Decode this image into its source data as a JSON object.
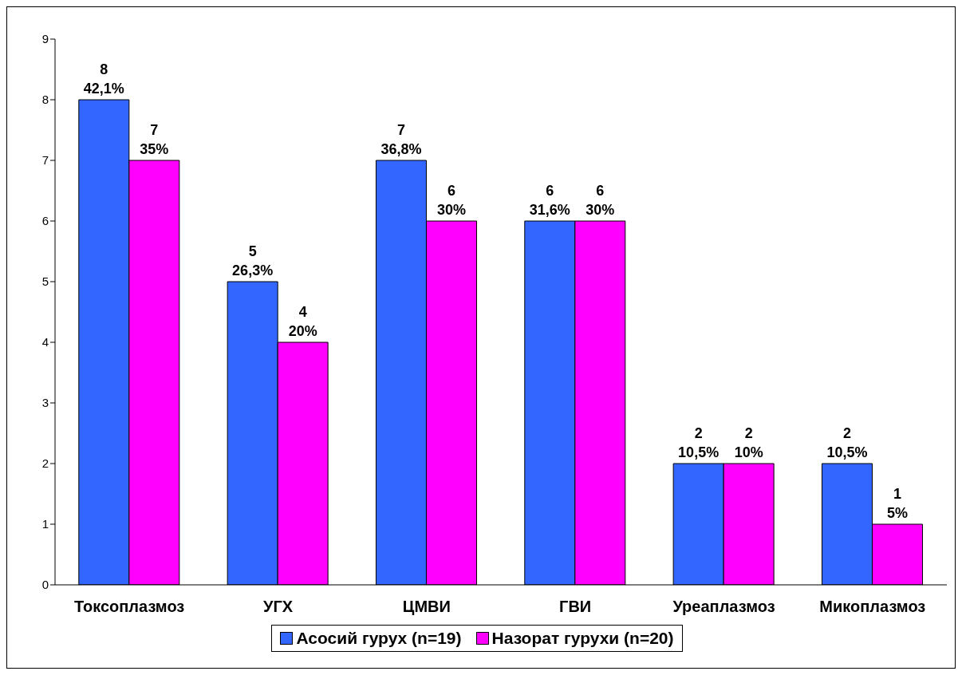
{
  "chart_data": {
    "type": "bar",
    "categories": [
      "Токсоплазмоз",
      "УГХ",
      "ЦМВИ",
      "ГВИ",
      "Уреаплазмоз",
      "Микоплазмоз"
    ],
    "series": [
      {
        "name": "Асосий гурух (n=19)",
        "color": "#3366ff",
        "values": [
          8,
          5,
          7,
          6,
          2,
          2
        ],
        "value_labels": [
          "8\n42,1%",
          "5\n26,3%",
          "7\n36,8%",
          "6\n31,6%",
          "2\n10,5%",
          "2\n10,5%"
        ]
      },
      {
        "name": "Назорат гурухи (n=20)",
        "color": "#ff00ff",
        "values": [
          7,
          4,
          6,
          6,
          2,
          1
        ],
        "value_labels": [
          "7\n35%",
          "4\n20%",
          "6\n30%",
          "6\n30%",
          "2\n10%",
          "1\n5%"
        ]
      }
    ],
    "ylim": [
      0,
      9
    ],
    "yticks": [
      0,
      1,
      2,
      3,
      4,
      5,
      6,
      7,
      8,
      9
    ],
    "grid": false,
    "legend": "bottom"
  }
}
